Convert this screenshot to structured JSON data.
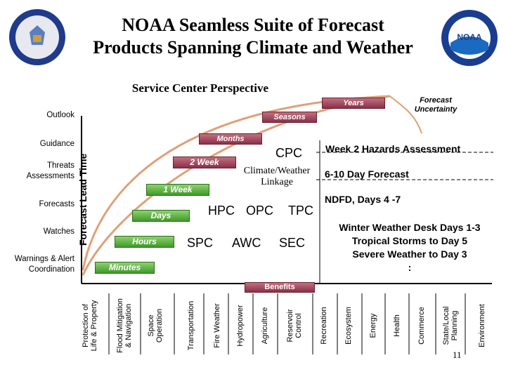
{
  "title_line1": "NOAA Seamless Suite of Forecast",
  "title_line2": "Products Spanning Climate and Weather",
  "subtitle": "Service Center Perspective",
  "left_labels": {
    "outlook": "Outlook",
    "guidance": "Guidance",
    "threats_1": "Threats",
    "threats_2": "Assessments",
    "forecasts": "Forecasts",
    "watches": "Watches",
    "warnings_1": "Warnings & Alert",
    "warnings_2": "Coordination"
  },
  "y_axis_label": "Forecast Lead Time",
  "boxes": {
    "years": "Years",
    "seasons": "Seasons",
    "months": "Months",
    "two_week": "2 Week",
    "one_week": "1 Week",
    "days": "Days",
    "hours": "Hours",
    "minutes": "Minutes",
    "benefits": "Benefits"
  },
  "forecast_uncertainty_1": "Forecast",
  "forecast_uncertainty_2": "Uncertainty",
  "centers": {
    "cpc": "CPC",
    "climate_weather_1": "Climate/Weather",
    "climate_weather_2": "Linkage",
    "hpc": "HPC",
    "opc": "OPC",
    "tpc": "TPC",
    "spc": "SPC",
    "awc": "AWC",
    "sec": "SEC"
  },
  "right_panel": {
    "week2": "Week 2 Hazards Assessment",
    "day610": "6-10 Day Forecast",
    "ndfd": "NDFD, Days 4 -7",
    "winter_1": "Winter Weather Desk Days 1-3",
    "winter_2": "Tropical Storms to Day 5",
    "winter_3": "Severe Weather to Day 3",
    "dots": ":"
  },
  "benefits": [
    {
      "l1": "Protection of",
      "l2": "Life & Property"
    },
    {
      "l1": "Flood Mitigation",
      "l2": "& Navigation"
    },
    {
      "l1": "Space",
      "l2": "Operation"
    },
    {
      "l1": "Transportation",
      "l2": ""
    },
    {
      "l1": "Fire Weather",
      "l2": ""
    },
    {
      "l1": "Hydropower",
      "l2": ""
    },
    {
      "l1": "Agriculture",
      "l2": ""
    },
    {
      "l1": "Reservoir",
      "l2": "Control"
    },
    {
      "l1": "Recreation",
      "l2": ""
    },
    {
      "l1": "Ecosystem",
      "l2": ""
    },
    {
      "l1": "Energy",
      "l2": ""
    },
    {
      "l1": "Health",
      "l2": ""
    },
    {
      "l1": "Commerce",
      "l2": ""
    },
    {
      "l1": "State/Local",
      "l2": "Planning"
    },
    {
      "l1": "Environment",
      "l2": ""
    }
  ],
  "page_number": "11",
  "colors": {
    "arc": "#d99a70",
    "box_red": "#a0405a",
    "box_green": "#4fa832",
    "axis": "#000000"
  }
}
